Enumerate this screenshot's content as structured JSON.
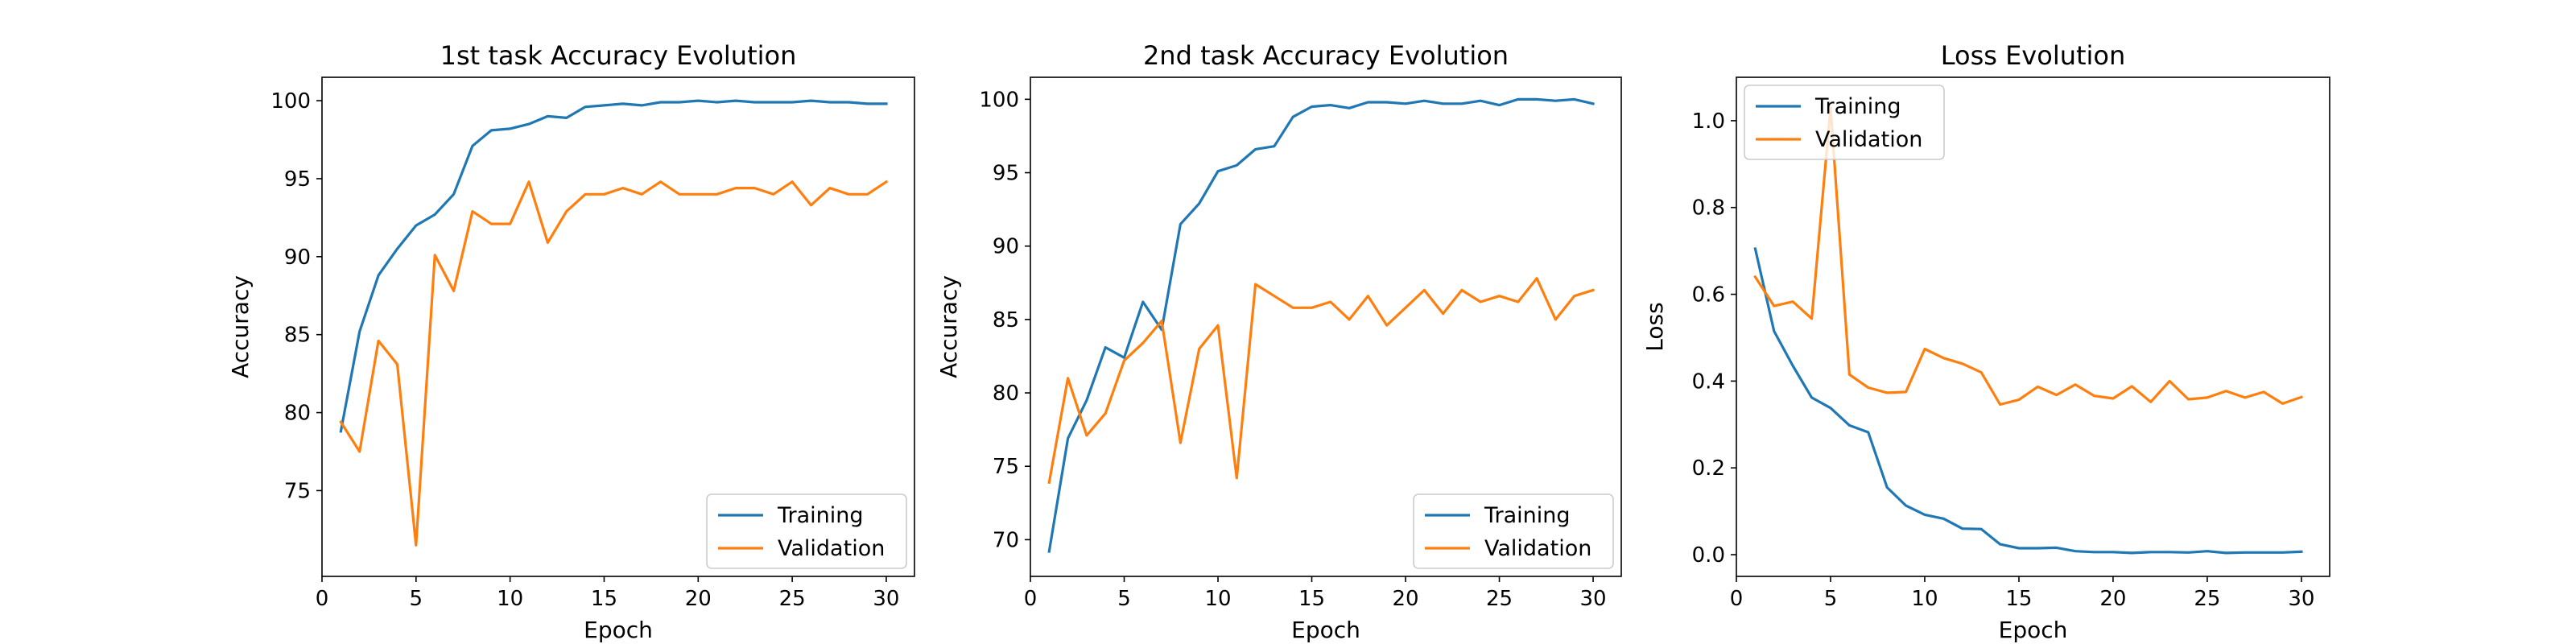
{
  "chart_data": [
    {
      "type": "line",
      "title": "1st task Accuracy Evolution",
      "xlabel": "Epoch",
      "ylabel": "Accuracy",
      "xlim": [
        0,
        31.5
      ],
      "ylim": [
        69.5,
        101.5
      ],
      "xticks": [
        0,
        5,
        10,
        15,
        20,
        25,
        30
      ],
      "yticks": [
        75,
        80,
        85,
        90,
        95,
        100
      ],
      "legend_position": "lower-right",
      "grid": false,
      "x": [
        1,
        2,
        3,
        4,
        5,
        6,
        7,
        8,
        9,
        10,
        11,
        12,
        13,
        14,
        15,
        16,
        17,
        18,
        19,
        20,
        21,
        22,
        23,
        24,
        25,
        26,
        27,
        28,
        29,
        30
      ],
      "series": [
        {
          "name": "Training",
          "color": "#1f77b4",
          "values": [
            78.8,
            85.2,
            88.8,
            90.5,
            92.0,
            92.7,
            94.0,
            97.1,
            98.1,
            98.2,
            98.5,
            99.0,
            98.9,
            99.6,
            99.7,
            99.8,
            99.7,
            99.9,
            99.9,
            100.0,
            99.9,
            100.0,
            99.9,
            99.9,
            99.9,
            100.0,
            99.9,
            99.9,
            99.8,
            99.8
          ]
        },
        {
          "name": "Validation",
          "color": "#ff7f0e",
          "values": [
            79.4,
            77.5,
            84.6,
            83.1,
            71.5,
            90.1,
            87.8,
            92.9,
            92.1,
            92.1,
            94.8,
            90.9,
            92.9,
            94.0,
            94.0,
            94.4,
            94.0,
            94.8,
            94.0,
            94.0,
            94.0,
            94.4,
            94.4,
            94.0,
            94.8,
            93.3,
            94.4,
            94.0,
            94.0,
            94.8
          ]
        }
      ]
    },
    {
      "type": "line",
      "title": "2nd task Accuracy Evolution",
      "xlabel": "Epoch",
      "ylabel": "Accuracy",
      "xlim": [
        0,
        31.5
      ],
      "ylim": [
        67.5,
        101.5
      ],
      "xticks": [
        0,
        5,
        10,
        15,
        20,
        25,
        30
      ],
      "yticks": [
        70,
        75,
        80,
        85,
        90,
        95,
        100
      ],
      "legend_position": "lower-right",
      "grid": false,
      "x": [
        1,
        2,
        3,
        4,
        5,
        6,
        7,
        8,
        9,
        10,
        11,
        12,
        13,
        14,
        15,
        16,
        17,
        18,
        19,
        20,
        21,
        22,
        23,
        24,
        25,
        26,
        27,
        28,
        29,
        30
      ],
      "series": [
        {
          "name": "Training",
          "color": "#1f77b4",
          "values": [
            69.2,
            76.9,
            79.5,
            83.1,
            82.4,
            86.2,
            84.3,
            91.5,
            92.9,
            95.1,
            95.5,
            96.6,
            96.8,
            98.8,
            99.5,
            99.6,
            99.4,
            99.8,
            99.8,
            99.7,
            99.9,
            99.7,
            99.7,
            99.9,
            99.6,
            100.0,
            100.0,
            99.9,
            100.0,
            99.7
          ]
        },
        {
          "name": "Validation",
          "color": "#ff7f0e",
          "values": [
            73.9,
            81.0,
            77.1,
            78.6,
            82.2,
            83.4,
            84.9,
            76.6,
            83.0,
            84.6,
            74.2,
            87.4,
            86.6,
            85.8,
            85.8,
            86.2,
            85.0,
            86.6,
            84.6,
            85.8,
            87.0,
            85.4,
            87.0,
            86.2,
            86.6,
            86.2,
            87.8,
            85.0,
            86.6,
            87.0
          ]
        }
      ]
    },
    {
      "type": "line",
      "title": "Loss Evolution",
      "xlabel": "Epoch",
      "ylabel": "Loss",
      "xlim": [
        0,
        31.5
      ],
      "ylim": [
        -0.05,
        1.1
      ],
      "xticks": [
        0,
        5,
        10,
        15,
        20,
        25,
        30
      ],
      "yticks": [
        0.0,
        0.2,
        0.4,
        0.6,
        0.8,
        1.0
      ],
      "ytick_labels": [
        "0.0",
        "0.2",
        "0.4",
        "0.6",
        "0.8",
        "1.0"
      ],
      "legend_position": "upper-left",
      "grid": false,
      "x": [
        1,
        2,
        3,
        4,
        5,
        6,
        7,
        8,
        9,
        10,
        11,
        12,
        13,
        14,
        15,
        16,
        17,
        18,
        19,
        20,
        21,
        22,
        23,
        24,
        25,
        26,
        27,
        28,
        29,
        30
      ],
      "series": [
        {
          "name": "Training",
          "color": "#1f77b4",
          "values": [
            0.705,
            0.515,
            0.435,
            0.362,
            0.338,
            0.298,
            0.282,
            0.155,
            0.113,
            0.092,
            0.083,
            0.06,
            0.059,
            0.024,
            0.015,
            0.015,
            0.016,
            0.008,
            0.006,
            0.006,
            0.004,
            0.006,
            0.006,
            0.005,
            0.008,
            0.004,
            0.005,
            0.005,
            0.005,
            0.007
          ]
        },
        {
          "name": "Validation",
          "color": "#ff7f0e",
          "values": [
            0.64,
            0.573,
            0.583,
            0.544,
            1.03,
            0.415,
            0.385,
            0.373,
            0.375,
            0.474,
            0.453,
            0.44,
            0.42,
            0.346,
            0.357,
            0.387,
            0.368,
            0.392,
            0.366,
            0.36,
            0.388,
            0.352,
            0.4,
            0.358,
            0.362,
            0.377,
            0.362,
            0.375,
            0.348,
            0.363
          ]
        }
      ]
    }
  ]
}
